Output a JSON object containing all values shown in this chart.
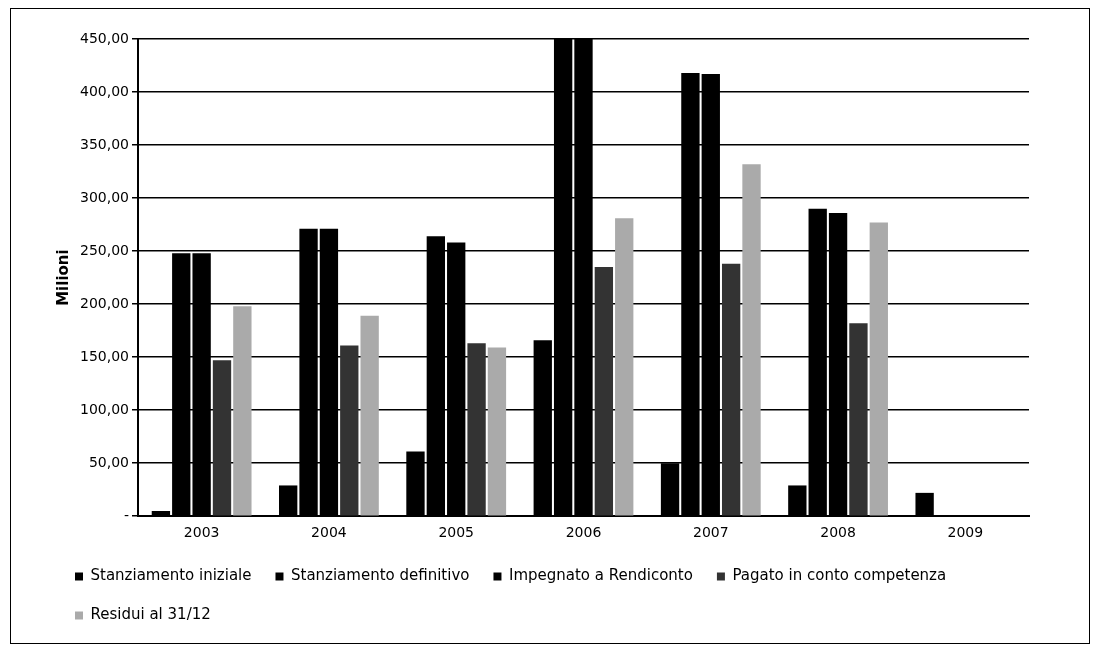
{
  "chart_data": {
    "type": "bar",
    "ylabel": "Milioni",
    "categories": [
      "2003",
      "2004",
      "2005",
      "2006",
      "2007",
      "2008",
      "2009"
    ],
    "series": [
      {
        "name": "Stanziamento iniziale",
        "color": "#000000",
        "values": [
          5,
          29,
          61,
          166,
          50,
          29,
          22
        ]
      },
      {
        "name": "Stanziamento definitivo",
        "color": "#000000",
        "values": [
          248,
          271,
          264,
          450,
          418,
          290,
          null
        ]
      },
      {
        "name": "Impegnato a Rendiconto",
        "color": "#000000",
        "values": [
          248,
          271,
          258,
          450,
          417,
          286,
          null
        ]
      },
      {
        "name": "Pagato in conto competenza",
        "color": "#333333",
        "values": [
          147,
          161,
          163,
          235,
          238,
          182,
          null
        ]
      },
      {
        "name": "Residui al 31/12",
        "color": "#aaaaaa",
        "values": [
          198,
          189,
          159,
          281,
          332,
          277,
          null
        ]
      }
    ],
    "ylim": [
      0,
      450
    ],
    "yticks": [
      {
        "value": 0,
        "label": "-"
      },
      {
        "value": 50,
        "label": "50,00"
      },
      {
        "value": 100,
        "label": "100,00"
      },
      {
        "value": 150,
        "label": "150,00"
      },
      {
        "value": 200,
        "label": "200,00"
      },
      {
        "value": 250,
        "label": "250,00"
      },
      {
        "value": 300,
        "label": "300,00"
      },
      {
        "value": 350,
        "label": "350,00"
      },
      {
        "value": 400,
        "label": "400,00"
      },
      {
        "value": 450,
        "label": "450,00"
      }
    ],
    "grid": "y",
    "legend": "bottom"
  }
}
